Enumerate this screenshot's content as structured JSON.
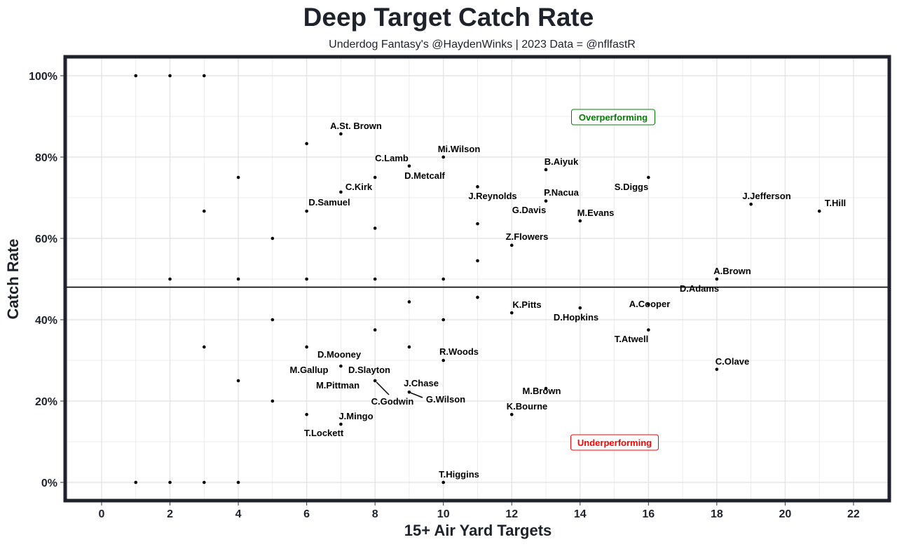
{
  "chart_data": {
    "type": "scatter",
    "title": "Deep Target Catch Rate",
    "subtitle": "Underdog Fantasy's @HaydenWinks | 2023 Data = @nflfastR",
    "xlabel": "15+ Air Yard Targets",
    "ylabel": "Catch Rate",
    "xlim": [
      -1,
      23
    ],
    "ylim": [
      -3.5,
      105
    ],
    "x_ticks": [
      0,
      2,
      4,
      6,
      8,
      10,
      12,
      14,
      16,
      18,
      20,
      22
    ],
    "y_ticks": [
      0,
      20,
      40,
      60,
      80,
      100
    ],
    "y_tick_labels": [
      "0%",
      "20%",
      "40%",
      "60%",
      "80%",
      "100%"
    ],
    "grid": true,
    "reference_line": {
      "y": 48
    },
    "annotations": [
      {
        "text": "Overperforming",
        "x": 15,
        "y": 90,
        "color": "#008000"
      },
      {
        "text": "Underperforming",
        "x": 15,
        "y": 10,
        "color": "#ff0000"
      }
    ],
    "points": [
      {
        "x": 1,
        "y": 100
      },
      {
        "x": 2,
        "y": 100
      },
      {
        "x": 3,
        "y": 100
      },
      {
        "x": 6,
        "y": 83.3
      },
      {
        "x": 7,
        "y": 85.7,
        "labels": [
          "A.St. Brown"
        ]
      },
      {
        "x": 4,
        "y": 75
      },
      {
        "x": 10,
        "y": 80,
        "labels": [
          "Mi.Wilson"
        ]
      },
      {
        "x": 8,
        "y": 75,
        "labels": [
          "C.Lamb"
        ]
      },
      {
        "x": 9,
        "y": 77.8,
        "labels": [
          "D.Metcalf"
        ]
      },
      {
        "x": 7,
        "y": 71.4,
        "labels": [
          "C.Kirk"
        ]
      },
      {
        "x": 6,
        "y": 66.7,
        "labels": [
          "D.Samuel"
        ]
      },
      {
        "x": 3,
        "y": 66.7
      },
      {
        "x": 5,
        "y": 60
      },
      {
        "x": 8,
        "y": 62.5
      },
      {
        "x": 11,
        "y": 72.7,
        "labels": [
          "J.Reynolds"
        ]
      },
      {
        "x": 11,
        "y": 63.6
      },
      {
        "x": 11,
        "y": 54.5
      },
      {
        "x": 13,
        "y": 76.9,
        "labels": [
          "B.Aiyuk"
        ]
      },
      {
        "x": 13,
        "y": 69.2,
        "labels": [
          "P.Nacua",
          "G.Davis"
        ]
      },
      {
        "x": 14,
        "y": 64.3,
        "labels": [
          "M.Evans"
        ]
      },
      {
        "x": 16,
        "y": 75,
        "labels": [
          "S.Diggs"
        ]
      },
      {
        "x": 19,
        "y": 68.4,
        "labels": [
          "J.Jefferson"
        ]
      },
      {
        "x": 21,
        "y": 66.7,
        "labels": [
          "T.Hill"
        ]
      },
      {
        "x": 12,
        "y": 58.3,
        "labels": [
          "Z.Flowers"
        ]
      },
      {
        "x": 18,
        "y": 50,
        "labels": [
          "A.Brown",
          "D.Adams"
        ]
      },
      {
        "x": 2,
        "y": 50
      },
      {
        "x": 4,
        "y": 50
      },
      {
        "x": 6,
        "y": 50
      },
      {
        "x": 8,
        "y": 50
      },
      {
        "x": 10,
        "y": 50
      },
      {
        "x": 9,
        "y": 44.4
      },
      {
        "x": 11,
        "y": 45.5
      },
      {
        "x": 10,
        "y": 40
      },
      {
        "x": 5,
        "y": 40
      },
      {
        "x": 12,
        "y": 41.7,
        "labels": [
          "K.Pitts"
        ]
      },
      {
        "x": 14,
        "y": 42.9,
        "labels": [
          "D.Hopkins"
        ]
      },
      {
        "x": 16,
        "y": 43.8,
        "labels": [
          "A.Cooper"
        ]
      },
      {
        "x": 16,
        "y": 37.5,
        "labels": [
          "T.Atwell"
        ]
      },
      {
        "x": 18,
        "y": 27.8,
        "labels": [
          "C.Olave"
        ]
      },
      {
        "x": 8,
        "y": 37.5
      },
      {
        "x": 3,
        "y": 33.3
      },
      {
        "x": 6,
        "y": 33.3
      },
      {
        "x": 9,
        "y": 33.3
      },
      {
        "x": 10,
        "y": 30,
        "labels": [
          "R.Woods"
        ]
      },
      {
        "x": 7,
        "y": 28.6,
        "labels": [
          "D.Mooney",
          "M.Gallup",
          "D.Slayton"
        ]
      },
      {
        "x": 8,
        "y": 25,
        "labels": [
          "M.Pittman",
          "C.Godwin"
        ]
      },
      {
        "x": 4,
        "y": 25
      },
      {
        "x": 9,
        "y": 22.2,
        "labels": [
          "J.Chase",
          "G.Wilson"
        ]
      },
      {
        "x": 5,
        "y": 20
      },
      {
        "x": 13,
        "y": 23.1,
        "labels": [
          "M.Brown"
        ]
      },
      {
        "x": 12,
        "y": 16.7,
        "labels": [
          "K.Bourne"
        ]
      },
      {
        "x": 6,
        "y": 16.7
      },
      {
        "x": 7,
        "y": 14.3,
        "labels": [
          "J.Mingo",
          "T.Lockett"
        ]
      },
      {
        "x": 10,
        "y": 0,
        "labels": [
          "T.Higgins"
        ]
      },
      {
        "x": 1,
        "y": 0
      },
      {
        "x": 2,
        "y": 0
      },
      {
        "x": 3,
        "y": 0
      },
      {
        "x": 4,
        "y": 0
      }
    ],
    "colors": {
      "frame": "#1e222b",
      "grid": "#e5e5e5",
      "point": "#000000",
      "text": "#1e222b"
    }
  }
}
